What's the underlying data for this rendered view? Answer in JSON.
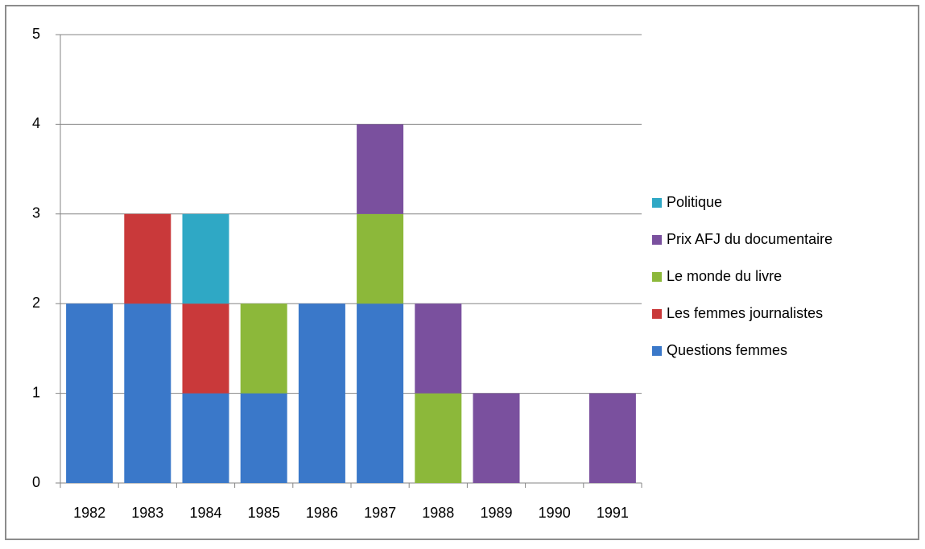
{
  "chart_data": {
    "type": "stacked_bar",
    "categories": [
      "1982",
      "1983",
      "1984",
      "1985",
      "1986",
      "1987",
      "1988",
      "1989",
      "1990",
      "1991"
    ],
    "series": [
      {
        "name": "Questions femmes",
        "color": "#3a78c9",
        "values": [
          2,
          2,
          1,
          1,
          2,
          2,
          0,
          0,
          0,
          0
        ]
      },
      {
        "name": "Les femmes journalistes",
        "color": "#c9393a",
        "values": [
          0,
          1,
          1,
          0,
          0,
          0,
          0,
          0,
          0,
          0
        ]
      },
      {
        "name": "Le monde du livre",
        "color": "#8cb83a",
        "values": [
          0,
          0,
          0,
          1,
          0,
          1,
          1,
          0,
          0,
          0
        ]
      },
      {
        "name": "Prix AFJ du documentaire",
        "color": "#7a509e",
        "values": [
          0,
          0,
          0,
          0,
          0,
          1,
          1,
          1,
          0,
          1
        ]
      },
      {
        "name": "Politique",
        "color": "#2fa8c5",
        "values": [
          0,
          0,
          1,
          0,
          0,
          0,
          0,
          0,
          0,
          0
        ]
      }
    ],
    "ylim": [
      0,
      5
    ],
    "yticks": [
      0,
      1,
      2,
      3,
      4,
      5
    ],
    "grid": true,
    "legend": "right"
  }
}
